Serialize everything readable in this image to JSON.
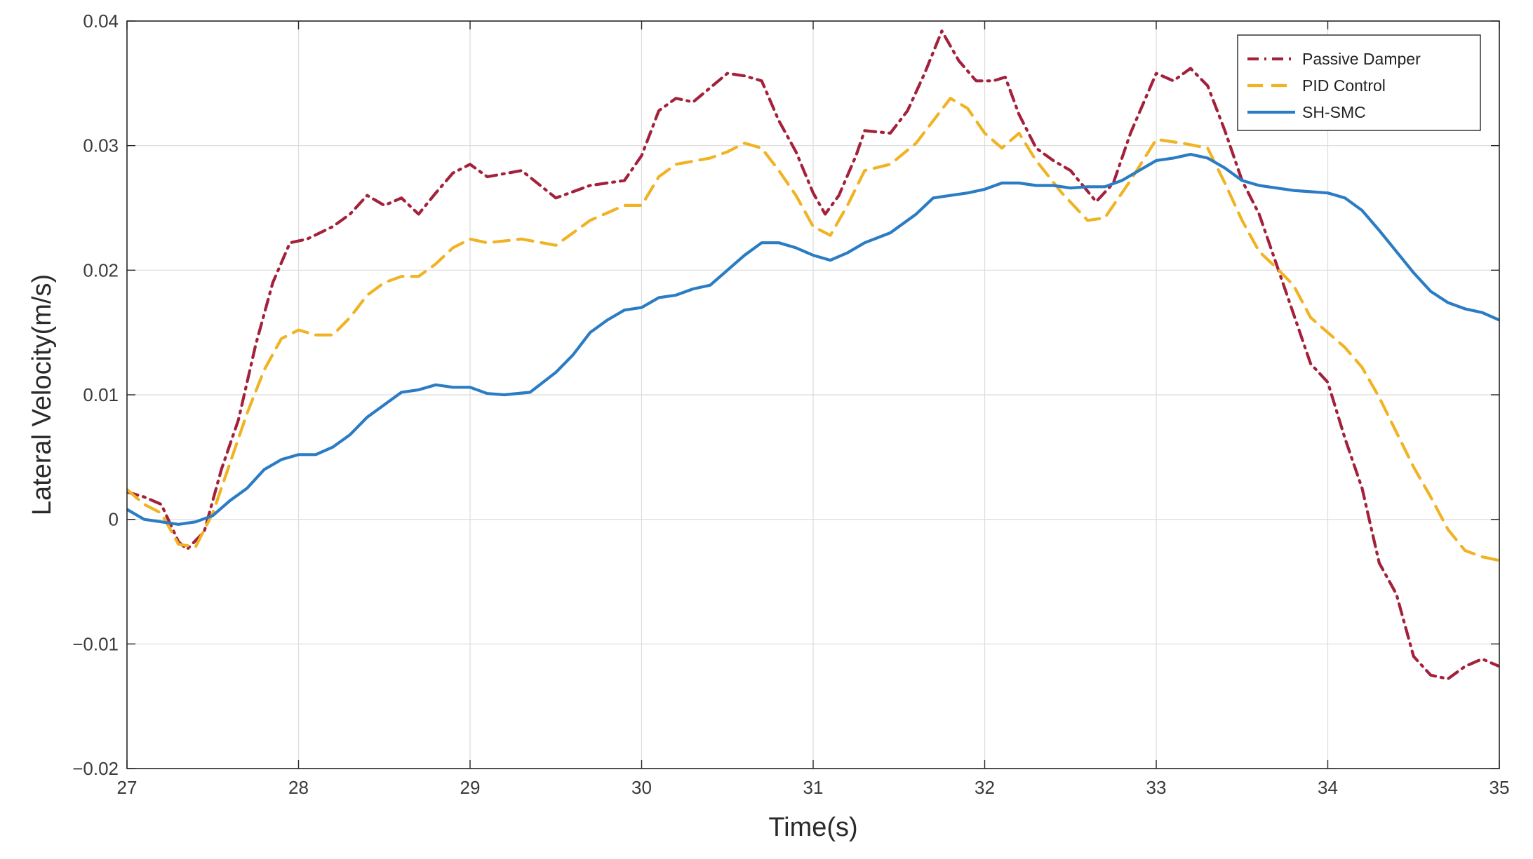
{
  "chart_data": {
    "type": "line",
    "title": "",
    "xlabel": "Time(s)",
    "ylabel": "Lateral Velocity(m/s)",
    "xlim": [
      27,
      35
    ],
    "ylim": [
      -0.02,
      0.04
    ],
    "xticks": [
      27,
      28,
      29,
      30,
      31,
      32,
      33,
      34,
      35
    ],
    "xtick_labels": [
      "27",
      "28",
      "29",
      "30",
      "31",
      "32",
      "33",
      "34",
      "35"
    ],
    "yticks": [
      -0.02,
      -0.01,
      0,
      0.01,
      0.02,
      0.03,
      0.04
    ],
    "ytick_labels": [
      "−0.02",
      "−0.01",
      "0",
      "0.01",
      "0.02",
      "0.03",
      "0.04"
    ],
    "grid": true,
    "legend_position": "top-right",
    "series": [
      {
        "name": "Passive Damper",
        "color": "#a3213a",
        "style": "dashdot",
        "points": [
          [
            27.0,
            0.0022
          ],
          [
            27.1,
            0.0018
          ],
          [
            27.2,
            0.0012
          ],
          [
            27.3,
            -0.0018
          ],
          [
            27.35,
            -0.0024
          ],
          [
            27.45,
            -0.001
          ],
          [
            27.55,
            0.004
          ],
          [
            27.65,
            0.008
          ],
          [
            27.75,
            0.014
          ],
          [
            27.85,
            0.019
          ],
          [
            27.95,
            0.0222
          ],
          [
            28.05,
            0.0225
          ],
          [
            28.2,
            0.0235
          ],
          [
            28.3,
            0.0245
          ],
          [
            28.4,
            0.026
          ],
          [
            28.5,
            0.0252
          ],
          [
            28.6,
            0.0258
          ],
          [
            28.7,
            0.0245
          ],
          [
            28.8,
            0.0262
          ],
          [
            28.9,
            0.0278
          ],
          [
            29.0,
            0.0285
          ],
          [
            29.1,
            0.0275
          ],
          [
            29.3,
            0.028
          ],
          [
            29.5,
            0.0258
          ],
          [
            29.7,
            0.0268
          ],
          [
            29.9,
            0.0272
          ],
          [
            30.0,
            0.0292
          ],
          [
            30.1,
            0.0328
          ],
          [
            30.2,
            0.0338
          ],
          [
            30.3,
            0.0335
          ],
          [
            30.5,
            0.0358
          ],
          [
            30.6,
            0.0356
          ],
          [
            30.7,
            0.0352
          ],
          [
            30.8,
            0.032
          ],
          [
            30.9,
            0.0295
          ],
          [
            31.0,
            0.0262
          ],
          [
            31.07,
            0.0245
          ],
          [
            31.15,
            0.026
          ],
          [
            31.25,
            0.0292
          ],
          [
            31.3,
            0.0312
          ],
          [
            31.45,
            0.031
          ],
          [
            31.55,
            0.0328
          ],
          [
            31.65,
            0.0358
          ],
          [
            31.75,
            0.0392
          ],
          [
            31.85,
            0.0368
          ],
          [
            31.95,
            0.0352
          ],
          [
            32.05,
            0.0352
          ],
          [
            32.12,
            0.0355
          ],
          [
            32.2,
            0.0325
          ],
          [
            32.3,
            0.0298
          ],
          [
            32.4,
            0.0288
          ],
          [
            32.5,
            0.028
          ],
          [
            32.65,
            0.0255
          ],
          [
            32.75,
            0.027
          ],
          [
            32.85,
            0.031
          ],
          [
            33.0,
            0.0358
          ],
          [
            33.1,
            0.0352
          ],
          [
            33.2,
            0.0362
          ],
          [
            33.3,
            0.0348
          ],
          [
            33.4,
            0.0312
          ],
          [
            33.5,
            0.0272
          ],
          [
            33.6,
            0.0245
          ],
          [
            33.7,
            0.0205
          ],
          [
            33.8,
            0.0165
          ],
          [
            33.9,
            0.0125
          ],
          [
            34.0,
            0.011
          ],
          [
            34.1,
            0.0065
          ],
          [
            34.2,
            0.0025
          ],
          [
            34.3,
            -0.0035
          ],
          [
            34.4,
            -0.006
          ],
          [
            34.5,
            -0.011
          ],
          [
            34.6,
            -0.0125
          ],
          [
            34.7,
            -0.0128
          ],
          [
            34.8,
            -0.0118
          ],
          [
            34.9,
            -0.0112
          ],
          [
            35.0,
            -0.0118
          ]
        ]
      },
      {
        "name": "PID Control",
        "color": "#f0b323",
        "style": "dashed",
        "points": [
          [
            27.0,
            0.0024
          ],
          [
            27.1,
            0.0012
          ],
          [
            27.2,
            0.0005
          ],
          [
            27.3,
            -0.002
          ],
          [
            27.4,
            -0.0022
          ],
          [
            27.5,
            0.0005
          ],
          [
            27.6,
            0.0045
          ],
          [
            27.7,
            0.0085
          ],
          [
            27.8,
            0.012
          ],
          [
            27.9,
            0.0145
          ],
          [
            28.0,
            0.0152
          ],
          [
            28.1,
            0.0148
          ],
          [
            28.2,
            0.0148
          ],
          [
            28.3,
            0.0162
          ],
          [
            28.4,
            0.018
          ],
          [
            28.5,
            0.019
          ],
          [
            28.6,
            0.0195
          ],
          [
            28.7,
            0.0195
          ],
          [
            28.8,
            0.0205
          ],
          [
            28.9,
            0.0218
          ],
          [
            29.0,
            0.0225
          ],
          [
            29.1,
            0.0222
          ],
          [
            29.3,
            0.0225
          ],
          [
            29.5,
            0.022
          ],
          [
            29.7,
            0.024
          ],
          [
            29.9,
            0.0252
          ],
          [
            30.0,
            0.0252
          ],
          [
            30.1,
            0.0275
          ],
          [
            30.2,
            0.0285
          ],
          [
            30.4,
            0.029
          ],
          [
            30.5,
            0.0295
          ],
          [
            30.6,
            0.0302
          ],
          [
            30.7,
            0.0298
          ],
          [
            30.8,
            0.028
          ],
          [
            30.9,
            0.026
          ],
          [
            31.0,
            0.0235
          ],
          [
            31.1,
            0.0228
          ],
          [
            31.2,
            0.0252
          ],
          [
            31.3,
            0.028
          ],
          [
            31.45,
            0.0285
          ],
          [
            31.6,
            0.0302
          ],
          [
            31.8,
            0.0338
          ],
          [
            31.9,
            0.033
          ],
          [
            32.0,
            0.031
          ],
          [
            32.1,
            0.0298
          ],
          [
            32.2,
            0.031
          ],
          [
            32.3,
            0.0288
          ],
          [
            32.45,
            0.0262
          ],
          [
            32.6,
            0.024
          ],
          [
            32.7,
            0.0242
          ],
          [
            32.85,
            0.0272
          ],
          [
            33.0,
            0.0305
          ],
          [
            33.15,
            0.0302
          ],
          [
            33.3,
            0.0298
          ],
          [
            33.4,
            0.027
          ],
          [
            33.5,
            0.024
          ],
          [
            33.6,
            0.0215
          ],
          [
            33.7,
            0.0202
          ],
          [
            33.8,
            0.0188
          ],
          [
            33.9,
            0.0162
          ],
          [
            34.0,
            0.015
          ],
          [
            34.1,
            0.0138
          ],
          [
            34.2,
            0.0122
          ],
          [
            34.3,
            0.0098
          ],
          [
            34.4,
            0.007
          ],
          [
            34.5,
            0.0042
          ],
          [
            34.6,
            0.0018
          ],
          [
            34.7,
            -0.0008
          ],
          [
            34.8,
            -0.0025
          ],
          [
            34.9,
            -0.003
          ],
          [
            35.0,
            -0.0033
          ]
        ]
      },
      {
        "name": "SH-SMC",
        "color": "#2a7cc4",
        "style": "solid",
        "points": [
          [
            27.0,
            0.0008
          ],
          [
            27.1,
            0.0
          ],
          [
            27.2,
            -0.0002
          ],
          [
            27.3,
            -0.0004
          ],
          [
            27.4,
            -0.0002
          ],
          [
            27.5,
            0.0003
          ],
          [
            27.6,
            0.0015
          ],
          [
            27.7,
            0.0025
          ],
          [
            27.8,
            0.004
          ],
          [
            27.9,
            0.0048
          ],
          [
            28.0,
            0.0052
          ],
          [
            28.1,
            0.0052
          ],
          [
            28.2,
            0.0058
          ],
          [
            28.3,
            0.0068
          ],
          [
            28.4,
            0.0082
          ],
          [
            28.5,
            0.0092
          ],
          [
            28.6,
            0.0102
          ],
          [
            28.7,
            0.0104
          ],
          [
            28.8,
            0.0108
          ],
          [
            28.9,
            0.0106
          ],
          [
            29.0,
            0.0106
          ],
          [
            29.1,
            0.0101
          ],
          [
            29.2,
            0.01
          ],
          [
            29.35,
            0.0102
          ],
          [
            29.5,
            0.0118
          ],
          [
            29.6,
            0.0132
          ],
          [
            29.7,
            0.015
          ],
          [
            29.8,
            0.016
          ],
          [
            29.9,
            0.0168
          ],
          [
            30.0,
            0.017
          ],
          [
            30.1,
            0.0178
          ],
          [
            30.2,
            0.018
          ],
          [
            30.3,
            0.0185
          ],
          [
            30.4,
            0.0188
          ],
          [
            30.5,
            0.02
          ],
          [
            30.6,
            0.0212
          ],
          [
            30.7,
            0.0222
          ],
          [
            30.8,
            0.0222
          ],
          [
            30.9,
            0.0218
          ],
          [
            31.0,
            0.0212
          ],
          [
            31.1,
            0.0208
          ],
          [
            31.2,
            0.0214
          ],
          [
            31.3,
            0.0222
          ],
          [
            31.45,
            0.023
          ],
          [
            31.6,
            0.0245
          ],
          [
            31.7,
            0.0258
          ],
          [
            31.8,
            0.026
          ],
          [
            31.9,
            0.0262
          ],
          [
            32.0,
            0.0265
          ],
          [
            32.1,
            0.027
          ],
          [
            32.2,
            0.027
          ],
          [
            32.3,
            0.0268
          ],
          [
            32.4,
            0.0268
          ],
          [
            32.5,
            0.0266
          ],
          [
            32.6,
            0.0267
          ],
          [
            32.7,
            0.0267
          ],
          [
            32.8,
            0.0272
          ],
          [
            32.9,
            0.028
          ],
          [
            33.0,
            0.0288
          ],
          [
            33.1,
            0.029
          ],
          [
            33.2,
            0.0293
          ],
          [
            33.3,
            0.029
          ],
          [
            33.4,
            0.0282
          ],
          [
            33.5,
            0.0272
          ],
          [
            33.6,
            0.0268
          ],
          [
            33.7,
            0.0266
          ],
          [
            33.8,
            0.0264
          ],
          [
            33.9,
            0.0263
          ],
          [
            34.0,
            0.0262
          ],
          [
            34.1,
            0.0258
          ],
          [
            34.2,
            0.0248
          ],
          [
            34.3,
            0.0232
          ],
          [
            34.4,
            0.0215
          ],
          [
            34.5,
            0.0198
          ],
          [
            34.6,
            0.0183
          ],
          [
            34.7,
            0.0174
          ],
          [
            34.8,
            0.0169
          ],
          [
            34.9,
            0.0166
          ],
          [
            35.0,
            0.016
          ]
        ]
      }
    ]
  }
}
